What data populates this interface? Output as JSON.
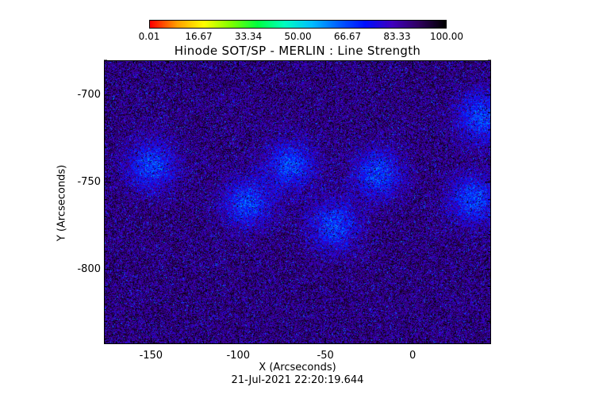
{
  "title": "Hinode SOT/SP - MERLIN : Line Strength",
  "colorbar": {
    "ticks": [
      "0.01",
      "16.67",
      "33.34",
      "50.00",
      "66.67",
      "83.33",
      "100.00"
    ],
    "range": [
      0.01,
      100.0
    ],
    "colormap": [
      "#ff0000",
      "#ffa000",
      "#ffff00",
      "#80ff00",
      "#00ff40",
      "#00ffc0",
      "#00c0ff",
      "#0060ff",
      "#0010ff",
      "#4000c0",
      "#300060",
      "#000000"
    ]
  },
  "chart_data": {
    "type": "heatmap",
    "title": "Hinode SOT/SP - MERLIN : Line Strength",
    "xlabel": "X (Arcseconds)",
    "ylabel": "Y (Arcseconds)",
    "xlim": [
      -177,
      45
    ],
    "ylim": [
      -843,
      -680
    ],
    "x_ticks": [
      "-150",
      "-100",
      "-50",
      "0"
    ],
    "x_tick_values": [
      -150,
      -100,
      -50,
      0
    ],
    "y_ticks": [
      "-700",
      "-750",
      "-800"
    ],
    "y_tick_values": [
      -700,
      -750,
      -800
    ],
    "value_range": [
      0.01,
      100.0
    ],
    "dominant_value_approx": 88,
    "bright_region_value_approx": 65,
    "bright_regions_center_xy": [
      [
        -95,
        -762
      ],
      [
        -45,
        -775
      ],
      [
        -20,
        -745
      ],
      [
        35,
        -760
      ],
      [
        -150,
        -740
      ],
      [
        40,
        -712
      ],
      [
        -70,
        -740
      ]
    ]
  },
  "timestamp": "21-Jul-2021 22:20:19.644"
}
